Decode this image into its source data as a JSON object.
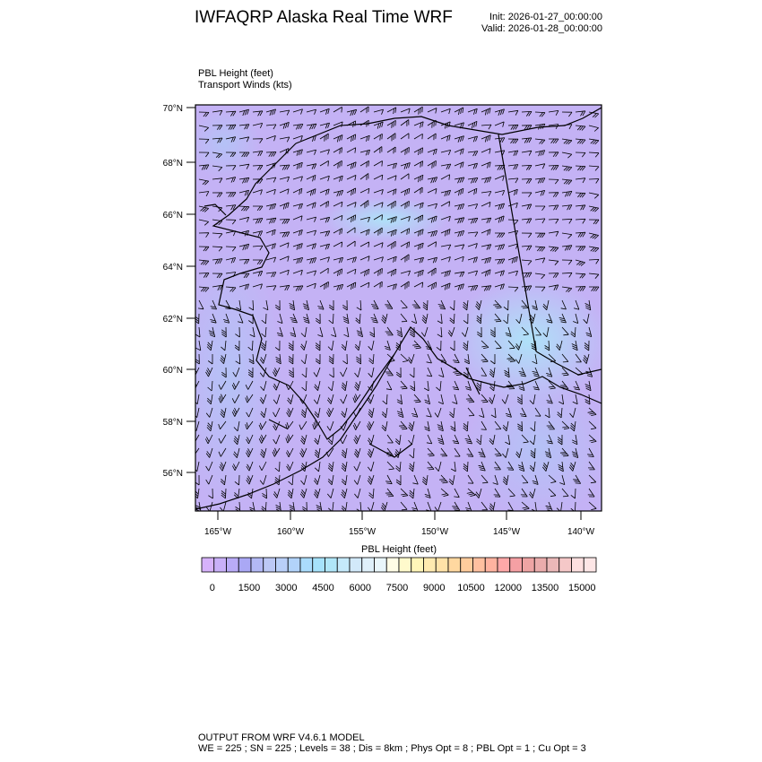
{
  "header": {
    "title": "IWFAQRP Alaska Real Time WRF",
    "init": "Init: 2026-01-27_00:00:00",
    "valid": "Valid: 2026-01-28_00:00:00",
    "field1": "PBL Height   (feet)",
    "field2": "Transport Winds   (kts)"
  },
  "map": {
    "lat_ticks": [
      "70°N",
      "68°N",
      "66°N",
      "64°N",
      "62°N",
      "60°N",
      "58°N",
      "56°N"
    ],
    "lon_ticks": [
      "165°W",
      "160°W",
      "155°W",
      "150°W",
      "145°W",
      "140°W"
    ],
    "dominant_color": "#c4b2f5",
    "secondary_color": "#b2dcf8"
  },
  "colorbar": {
    "title": "PBL Height  (feet)",
    "labels": [
      "0",
      "1500",
      "3000",
      "4500",
      "6000",
      "7500",
      "9000",
      "10500",
      "12000",
      "13500",
      "15000"
    ],
    "colors": [
      "#d6b2fa",
      "#c9b0f8",
      "#b9abf7",
      "#aaa8f5",
      "#b3b9f5",
      "#bcc8f5",
      "#b9cff8",
      "#b2d3fa",
      "#aadcfc",
      "#a6e2fb",
      "#b0e6f8",
      "#c5e9fa",
      "#d2e9fa",
      "#dff0fa",
      "#e9f6fb",
      "#fffde6",
      "#fffacc",
      "#fff5b8",
      "#ffeab0",
      "#ffe2a8",
      "#ffd8a0",
      "#ffcc9c",
      "#ffc0a0",
      "#ffb3a0",
      "#ffa8a8",
      "#f5a0a4",
      "#eea4a4",
      "#eaacac",
      "#eab8b8",
      "#f5c8c8",
      "#fde0e0",
      "#fde6e6"
    ]
  },
  "footer": {
    "line1": "OUTPUT FROM WRF V4.6.1 MODEL",
    "line2": "WE = 225 ; SN = 225 ; Levels = 38 ; Dis = 8km ; Phys Opt = 8 ; PBL Opt = 1 ; Cu Opt = 3"
  }
}
